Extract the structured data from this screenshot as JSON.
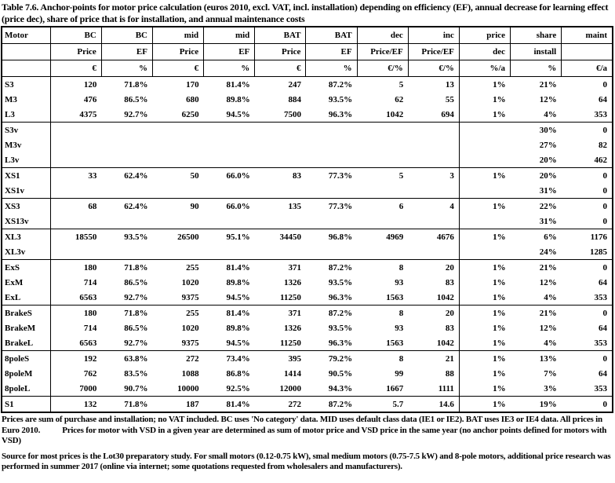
{
  "colors": {
    "text": "#000000",
    "background": "#ffffff",
    "border": "#000000"
  },
  "title": "Table 7.6. Anchor-points for motor price calculation (euros 2010, excl. VAT, incl. installation) depending on efficiency (EF), annual decrease for learning effect (price dec), share of price that is for installation, and annual maintenance costs",
  "table": {
    "header_row1": [
      "Motor",
      "BC",
      "BC",
      "mid",
      "mid",
      "BAT",
      "BAT",
      "dec",
      "inc",
      "price",
      "share",
      "maint"
    ],
    "header_row2": [
      "",
      "Price",
      "EF",
      "Price",
      "EF",
      "Price",
      "EF",
      "Price/EF",
      "Price/EF",
      "dec",
      "install",
      ""
    ],
    "header_row3": [
      "",
      "€",
      "%",
      "€",
      "%",
      "€",
      "%",
      "€/%",
      "€/%",
      "%/a",
      "%",
      "€/a"
    ],
    "groups": [
      {
        "rows": [
          {
            "motor": "S3",
            "values": [
              "120",
              "71.8%",
              "170",
              "81.4%",
              "247",
              "87.2%",
              "5",
              "13",
              "1%",
              "21%",
              "0"
            ]
          },
          {
            "motor": "M3",
            "values": [
              "476",
              "86.5%",
              "680",
              "89.8%",
              "884",
              "93.5%",
              "62",
              "55",
              "1%",
              "12%",
              "64"
            ]
          },
          {
            "motor": "L3",
            "values": [
              "4375",
              "92.7%",
              "6250",
              "94.5%",
              "7500",
              "96.3%",
              "1042",
              "694",
              "1%",
              "4%",
              "353"
            ]
          }
        ]
      },
      {
        "rows": [
          {
            "motor": "S3v",
            "values": [
              "",
              "",
              "",
              "",
              "",
              "",
              "",
              "",
              "",
              "30%",
              "0"
            ]
          },
          {
            "motor": "M3v",
            "values": [
              "",
              "",
              "",
              "",
              "",
              "",
              "",
              "",
              "",
              "27%",
              "82"
            ]
          },
          {
            "motor": "L3v",
            "values": [
              "",
              "",
              "",
              "",
              "",
              "",
              "",
              "",
              "",
              "20%",
              "462"
            ]
          }
        ]
      },
      {
        "rows": [
          {
            "motor": "XS1",
            "values": [
              "33",
              "62.4%",
              "50",
              "66.0%",
              "83",
              "77.3%",
              "5",
              "3",
              "1%",
              "20%",
              "0"
            ]
          },
          {
            "motor": "XS1v",
            "values": [
              "",
              "",
              "",
              "",
              "",
              "",
              "",
              "",
              "",
              "31%",
              "0"
            ]
          }
        ]
      },
      {
        "rows": [
          {
            "motor": "XS3",
            "values": [
              "68",
              "62.4%",
              "90",
              "66.0%",
              "135",
              "77.3%",
              "6",
              "4",
              "1%",
              "22%",
              "0"
            ]
          },
          {
            "motor": "XS13v",
            "values": [
              "",
              "",
              "",
              "",
              "",
              "",
              "",
              "",
              "",
              "31%",
              "0"
            ]
          }
        ]
      },
      {
        "rows": [
          {
            "motor": "XL3",
            "values": [
              "18550",
              "93.5%",
              "26500",
              "95.1%",
              "34450",
              "96.8%",
              "4969",
              "4676",
              "1%",
              "6%",
              "1176"
            ]
          },
          {
            "motor": "XL3v",
            "values": [
              "",
              "",
              "",
              "",
              "",
              "",
              "",
              "",
              "",
              "24%",
              "1285"
            ]
          }
        ]
      },
      {
        "rows": [
          {
            "motor": "ExS",
            "values": [
              "180",
              "71.8%",
              "255",
              "81.4%",
              "371",
              "87.2%",
              "8",
              "20",
              "1%",
              "21%",
              "0"
            ]
          },
          {
            "motor": "ExM",
            "values": [
              "714",
              "86.5%",
              "1020",
              "89.8%",
              "1326",
              "93.5%",
              "93",
              "83",
              "1%",
              "12%",
              "64"
            ]
          },
          {
            "motor": "ExL",
            "values": [
              "6563",
              "92.7%",
              "9375",
              "94.5%",
              "11250",
              "96.3%",
              "1563",
              "1042",
              "1%",
              "4%",
              "353"
            ]
          }
        ]
      },
      {
        "rows": [
          {
            "motor": "BrakeS",
            "values": [
              "180",
              "71.8%",
              "255",
              "81.4%",
              "371",
              "87.2%",
              "8",
              "20",
              "1%",
              "21%",
              "0"
            ]
          },
          {
            "motor": "BrakeM",
            "values": [
              "714",
              "86.5%",
              "1020",
              "89.8%",
              "1326",
              "93.5%",
              "93",
              "83",
              "1%",
              "12%",
              "64"
            ]
          },
          {
            "motor": "BrakeL",
            "values": [
              "6563",
              "92.7%",
              "9375",
              "94.5%",
              "11250",
              "96.3%",
              "1563",
              "1042",
              "1%",
              "4%",
              "353"
            ]
          }
        ]
      },
      {
        "rows": [
          {
            "motor": "8poleS",
            "values": [
              "192",
              "63.8%",
              "272",
              "73.4%",
              "395",
              "79.2%",
              "8",
              "21",
              "1%",
              "13%",
              "0"
            ]
          },
          {
            "motor": "8poleM",
            "values": [
              "762",
              "83.5%",
              "1088",
              "86.8%",
              "1414",
              "90.5%",
              "99",
              "88",
              "1%",
              "7%",
              "64"
            ]
          },
          {
            "motor": "8poleL",
            "values": [
              "7000",
              "90.7%",
              "10000",
              "92.5%",
              "12000",
              "94.3%",
              "1667",
              "1111",
              "1%",
              "3%",
              "353"
            ]
          }
        ]
      },
      {
        "rows": [
          {
            "motor": "S1",
            "values": [
              "132",
              "71.8%",
              "187",
              "81.4%",
              "272",
              "87.2%",
              "5.7",
              "14.6",
              "1%",
              "19%",
              "0"
            ]
          }
        ]
      }
    ]
  },
  "footnotes": {
    "note1": "Prices are sum of purchase and installation; no VAT included. BC uses 'No category' data. MID uses default class data (IE1 or IE2). BAT uses IE3 or IE4 data. All prices in Euro 2010.           Prices for motor with VSD in a given year are determined as sum of motor price and VSD price in the same year (no anchor points defined for motors with VSD)",
    "note2": "Source for most prices is the Lot30 preparatory study. For small motors (0.12-0.75 kW), smal medium motors (0.75-7.5 kW) and 8-pole motors, additional price research was performed in summer 2017 (online via internet; some quotations requested from wholesalers and manufacturers)."
  }
}
